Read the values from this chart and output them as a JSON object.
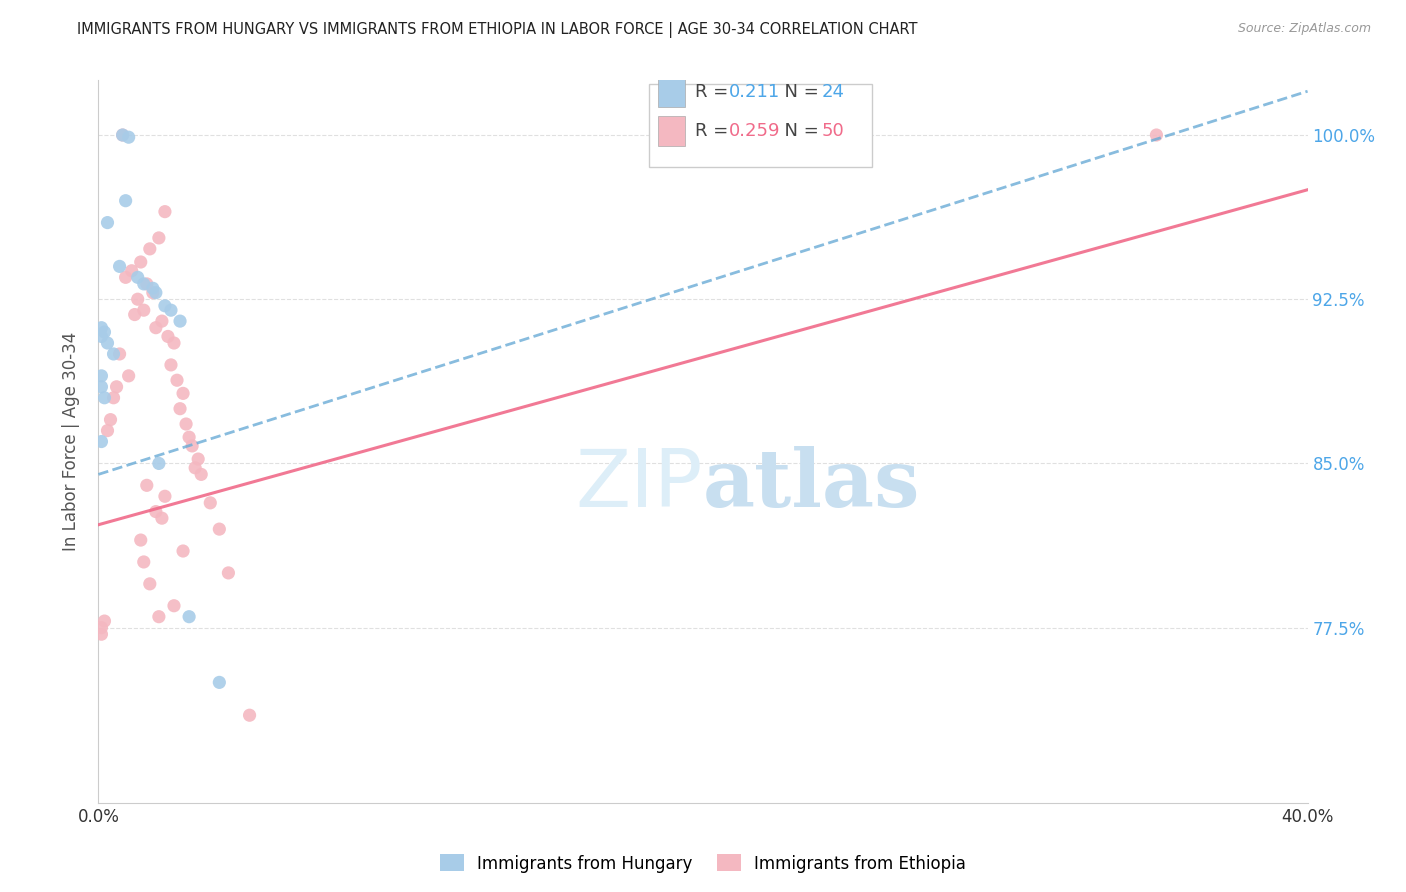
{
  "title": "IMMIGRANTS FROM HUNGARY VS IMMIGRANTS FROM ETHIOPIA IN LABOR FORCE | AGE 30-34 CORRELATION CHART",
  "source": "Source: ZipAtlas.com",
  "ylabel": "In Labor Force | Age 30-34",
  "xlim": [
    0.0,
    0.4
  ],
  "ylim": [
    0.695,
    1.025
  ],
  "yticks": [
    0.775,
    0.85,
    0.925,
    1.0
  ],
  "ytick_labels": [
    "77.5%",
    "85.0%",
    "92.5%",
    "100.0%"
  ],
  "xticks": [
    0.0,
    0.08,
    0.16,
    0.24,
    0.32,
    0.4
  ],
  "xtick_labels": [
    "0.0%",
    "",
    "",
    "",
    "",
    "40.0%"
  ],
  "legend_hungary_r": "R =  0.211",
  "legend_hungary_n": "N = 24",
  "legend_ethiopia_r": "R =  0.259",
  "legend_ethiopia_n": "N = 50",
  "hungary_color": "#a8cce8",
  "ethiopia_color": "#f4b8c1",
  "hungary_line_color": "#6aabd6",
  "ethiopia_line_color": "#f06b8a",
  "hungary_color_legend": "#a8cce8",
  "ethiopia_color_legend": "#f4b8c1",
  "watermark_color": "#ddeef8",
  "background_color": "#ffffff",
  "grid_color": "#e0e0e0",
  "title_color": "#222222",
  "axis_label_color": "#555555",
  "right_ytick_color": "#4da6e8",
  "hungary_scatter_x": [
    0.008,
    0.01,
    0.009,
    0.003,
    0.007,
    0.013,
    0.015,
    0.018,
    0.019,
    0.022,
    0.024,
    0.027,
    0.001,
    0.002,
    0.001,
    0.003,
    0.005,
    0.001,
    0.001,
    0.002,
    0.001,
    0.02,
    0.03,
    0.04
  ],
  "hungary_scatter_y": [
    1.0,
    0.999,
    0.97,
    0.96,
    0.94,
    0.935,
    0.932,
    0.93,
    0.928,
    0.922,
    0.92,
    0.915,
    0.912,
    0.91,
    0.908,
    0.905,
    0.9,
    0.89,
    0.885,
    0.88,
    0.86,
    0.85,
    0.78,
    0.75
  ],
  "ethiopia_scatter_x": [
    0.008,
    0.022,
    0.02,
    0.017,
    0.014,
    0.011,
    0.009,
    0.016,
    0.018,
    0.013,
    0.015,
    0.012,
    0.021,
    0.019,
    0.023,
    0.025,
    0.007,
    0.024,
    0.01,
    0.026,
    0.006,
    0.028,
    0.005,
    0.027,
    0.004,
    0.029,
    0.003,
    0.03,
    0.031,
    0.033,
    0.032,
    0.034,
    0.016,
    0.022,
    0.037,
    0.019,
    0.021,
    0.04,
    0.014,
    0.028,
    0.015,
    0.043,
    0.017,
    0.025,
    0.02,
    0.002,
    0.001,
    0.001,
    0.35,
    0.05
  ],
  "ethiopia_scatter_y": [
    1.0,
    0.965,
    0.953,
    0.948,
    0.942,
    0.938,
    0.935,
    0.932,
    0.928,
    0.925,
    0.92,
    0.918,
    0.915,
    0.912,
    0.908,
    0.905,
    0.9,
    0.895,
    0.89,
    0.888,
    0.885,
    0.882,
    0.88,
    0.875,
    0.87,
    0.868,
    0.865,
    0.862,
    0.858,
    0.852,
    0.848,
    0.845,
    0.84,
    0.835,
    0.832,
    0.828,
    0.825,
    0.82,
    0.815,
    0.81,
    0.805,
    0.8,
    0.795,
    0.785,
    0.78,
    0.778,
    0.775,
    0.772,
    1.0,
    0.735
  ],
  "hungary_line_x0": 0.0,
  "hungary_line_x1": 0.4,
  "hungary_line_y0": 0.845,
  "hungary_line_y1": 1.02,
  "ethiopia_line_x0": 0.0,
  "ethiopia_line_x1": 0.4,
  "ethiopia_line_y0": 0.822,
  "ethiopia_line_y1": 0.975
}
